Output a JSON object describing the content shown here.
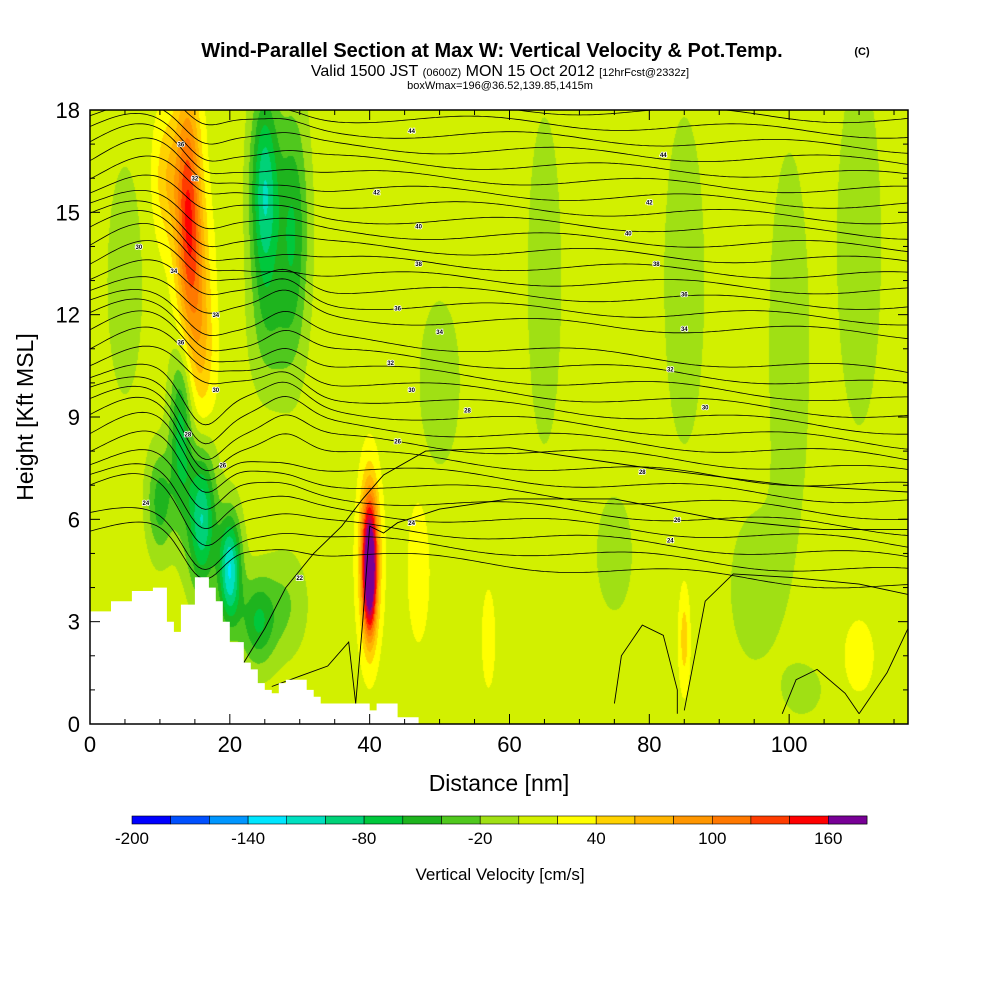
{
  "title": {
    "main": "Wind-Parallel Section at Max W: Vertical Velocity & Pot.Temp.",
    "copyright": "(C)",
    "valid_prefix": "Valid 1500 JST",
    "valid_utc": "(0600Z)",
    "valid_date": "MON 15 Oct 2012",
    "forecast": "[12hrFcst@2332z]",
    "subline": "boxWmax=196@36.52,139.85,1415m"
  },
  "chart_data": {
    "type": "heatmap",
    "xlabel": "Distance [nm]",
    "ylabel": "Height [Kft MSL]",
    "xlim": [
      0,
      117
    ],
    "ylim": [
      0,
      18
    ],
    "x_ticks": [
      "0",
      "20",
      "40",
      "60",
      "80",
      "100"
    ],
    "x_tick_values": [
      0,
      20,
      40,
      60,
      80,
      100
    ],
    "y_ticks": [
      "0",
      "3",
      "6",
      "9",
      "12",
      "15",
      "18"
    ],
    "y_tick_values": [
      0,
      3,
      6,
      9,
      12,
      15,
      18
    ],
    "background_value": 10,
    "terrain": [
      [
        0,
        3.3
      ],
      [
        3,
        3.3
      ],
      [
        3,
        3.6
      ],
      [
        6,
        3.6
      ],
      [
        6,
        3.9
      ],
      [
        9,
        3.9
      ],
      [
        9,
        4.0
      ],
      [
        11,
        4.0
      ],
      [
        11,
        3.0
      ],
      [
        12,
        3.0
      ],
      [
        12,
        2.7
      ],
      [
        13,
        2.7
      ],
      [
        13,
        3.5
      ],
      [
        15,
        3.5
      ],
      [
        15,
        4.3
      ],
      [
        17,
        4.3
      ],
      [
        17,
        4.0
      ],
      [
        18,
        4.0
      ],
      [
        18,
        3.6
      ],
      [
        19,
        3.6
      ],
      [
        19,
        3.0
      ],
      [
        20,
        3.0
      ],
      [
        20,
        2.4
      ],
      [
        22,
        2.4
      ],
      [
        22,
        1.8
      ],
      [
        23,
        1.8
      ],
      [
        23,
        1.6
      ],
      [
        24,
        1.6
      ],
      [
        24,
        1.2
      ],
      [
        25,
        1.2
      ],
      [
        25,
        1.0
      ],
      [
        26,
        1.0
      ],
      [
        26,
        0.9
      ],
      [
        27,
        0.9
      ],
      [
        27,
        1.2
      ],
      [
        28,
        1.2
      ],
      [
        28,
        1.3
      ],
      [
        31,
        1.3
      ],
      [
        31,
        1.0
      ],
      [
        32,
        1.0
      ],
      [
        32,
        0.8
      ],
      [
        33,
        0.8
      ],
      [
        33,
        0.6
      ],
      [
        40,
        0.6
      ],
      [
        40,
        0.4
      ],
      [
        41,
        0.4
      ],
      [
        41,
        0.6
      ],
      [
        44,
        0.6
      ],
      [
        44,
        0.2
      ],
      [
        47,
        0.2
      ],
      [
        47,
        0
      ]
    ],
    "wcells": [
      {
        "x": 14,
        "y": 15.5,
        "sx": 1.8,
        "sy": 3.2,
        "w": 110
      },
      {
        "x": 15,
        "y": 13,
        "sx": 2.2,
        "sy": 2.5,
        "w": 60
      },
      {
        "x": 11,
        "y": 16,
        "sx": 2.0,
        "sy": 2.0,
        "w": 45
      },
      {
        "x": 16,
        "y": 10.5,
        "sx": 2.0,
        "sy": 2.0,
        "w": 35
      },
      {
        "x": 25,
        "y": 15.5,
        "sx": 2.0,
        "sy": 3.0,
        "w": -110
      },
      {
        "x": 29,
        "y": 14.5,
        "sx": 2.2,
        "sy": 3.5,
        "w": -70
      },
      {
        "x": 26,
        "y": 11.5,
        "sx": 3.0,
        "sy": 2.0,
        "w": -30
      },
      {
        "x": 13,
        "y": 8.5,
        "sx": 1.6,
        "sy": 2.5,
        "w": -80
      },
      {
        "x": 10,
        "y": 6.5,
        "sx": 1.8,
        "sy": 1.5,
        "w": -60
      },
      {
        "x": 16,
        "y": 6.0,
        "sx": 2.0,
        "sy": 2.0,
        "w": -110
      },
      {
        "x": 20,
        "y": 4.5,
        "sx": 1.6,
        "sy": 1.6,
        "w": -130
      },
      {
        "x": 24,
        "y": 3.0,
        "sx": 2.5,
        "sy": 1.3,
        "w": -70
      },
      {
        "x": 28,
        "y": 3.5,
        "sx": 3.0,
        "sy": 1.5,
        "w": -30
      },
      {
        "x": 40,
        "y": 4.3,
        "sx": 0.9,
        "sy": 1.6,
        "w": 190
      },
      {
        "x": 40,
        "y": 5.3,
        "sx": 1.2,
        "sy": 1.9,
        "w": 100
      },
      {
        "x": 40,
        "y": 4.5,
        "sx": 2.0,
        "sy": 2.8,
        "w": 30
      },
      {
        "x": 50,
        "y": 10,
        "sx": 3.0,
        "sy": 2.5,
        "w": -25
      },
      {
        "x": 65,
        "y": 13,
        "sx": 2.5,
        "sy": 5.0,
        "w": -25
      },
      {
        "x": 85,
        "y": 13,
        "sx": 3.0,
        "sy": 5.0,
        "w": -25
      },
      {
        "x": 100,
        "y": 11,
        "sx": 3.0,
        "sy": 6.0,
        "w": -25
      },
      {
        "x": 110,
        "y": 14,
        "sx": 3.0,
        "sy": 5.0,
        "w": -30
      },
      {
        "x": 75,
        "y": 5,
        "sx": 3.0,
        "sy": 2.0,
        "w": -20
      },
      {
        "x": 95,
        "y": 4,
        "sx": 4.0,
        "sy": 2.5,
        "w": -20
      },
      {
        "x": 5,
        "y": 13,
        "sx": 3.0,
        "sy": 4.0,
        "w": -20
      },
      {
        "x": 85,
        "y": 2.5,
        "sx": 0.8,
        "sy": 1.5,
        "w": 40
      },
      {
        "x": 110,
        "y": 2,
        "sx": 2.0,
        "sy": 1.0,
        "w": 30
      },
      {
        "x": 102,
        "y": 1,
        "sx": 3.0,
        "sy": 0.8,
        "w": -20
      },
      {
        "x": 47,
        "y": 4.5,
        "sx": 1.5,
        "sy": 2.0,
        "w": 30
      },
      {
        "x": 57,
        "y": 2.5,
        "sx": 1.0,
        "sy": 1.5,
        "w": 25
      }
    ],
    "contour_labels": [
      {
        "text": "44",
        "x": 46,
        "y": 17.4
      },
      {
        "text": "44",
        "x": 82,
        "y": 16.7
      },
      {
        "text": "42",
        "x": 41,
        "y": 15.6
      },
      {
        "text": "42",
        "x": 80,
        "y": 15.3
      },
      {
        "text": "40",
        "x": 47,
        "y": 14.6
      },
      {
        "text": "40",
        "x": 77,
        "y": 14.4
      },
      {
        "text": "38",
        "x": 47,
        "y": 13.5
      },
      {
        "text": "38",
        "x": 81,
        "y": 13.5
      },
      {
        "text": "36",
        "x": 44,
        "y": 12.2
      },
      {
        "text": "36",
        "x": 85,
        "y": 12.6
      },
      {
        "text": "34",
        "x": 50,
        "y": 11.5
      },
      {
        "text": "34",
        "x": 85,
        "y": 11.6
      },
      {
        "text": "32",
        "x": 43,
        "y": 10.6
      },
      {
        "text": "32",
        "x": 83,
        "y": 10.4
      },
      {
        "text": "30",
        "x": 46,
        "y": 9.8
      },
      {
        "text": "30",
        "x": 88,
        "y": 9.3
      },
      {
        "text": "28",
        "x": 54,
        "y": 9.2
      },
      {
        "text": "28",
        "x": 79,
        "y": 7.4
      },
      {
        "text": "26",
        "x": 44,
        "y": 8.3
      },
      {
        "text": "26",
        "x": 84,
        "y": 6.0
      },
      {
        "text": "24",
        "x": 46,
        "y": 5.9
      },
      {
        "text": "24",
        "x": 83,
        "y": 5.4
      },
      {
        "text": "36",
        "x": 13,
        "y": 17
      },
      {
        "text": "32",
        "x": 15,
        "y": 16
      },
      {
        "text": "30",
        "x": 7,
        "y": 14
      },
      {
        "text": "34",
        "x": 12,
        "y": 13.3
      },
      {
        "text": "34",
        "x": 18,
        "y": 12
      },
      {
        "text": "36",
        "x": 13,
        "y": 11.2
      },
      {
        "text": "30",
        "x": 18,
        "y": 9.8
      },
      {
        "text": "28",
        "x": 14,
        "y": 8.5
      },
      {
        "text": "26",
        "x": 19,
        "y": 7.6
      },
      {
        "text": "24",
        "x": 8,
        "y": 6.5
      },
      {
        "text": "22",
        "x": 30,
        "y": 4.3
      }
    ]
  },
  "colorbar": {
    "title": "Vertical Velocity [cm/s]",
    "min": -200,
    "max": 180,
    "step": 20,
    "labels": [
      "-200",
      "-140",
      "-80",
      "-20",
      "40",
      "100",
      "160"
    ],
    "label_values": [
      -200,
      -140,
      -80,
      -20,
      40,
      100,
      160
    ],
    "colors": [
      "#0000ff",
      "#0050ff",
      "#0096ff",
      "#00e6ff",
      "#00e0c0",
      "#00d278",
      "#00c83c",
      "#1eb41e",
      "#50c81e",
      "#a0e014",
      "#d2f000",
      "#ffff00",
      "#ffd200",
      "#ffb400",
      "#ff9600",
      "#ff7800",
      "#ff3c00",
      "#ff0000",
      "#dc0032",
      "#b40064",
      "#780096"
    ]
  }
}
